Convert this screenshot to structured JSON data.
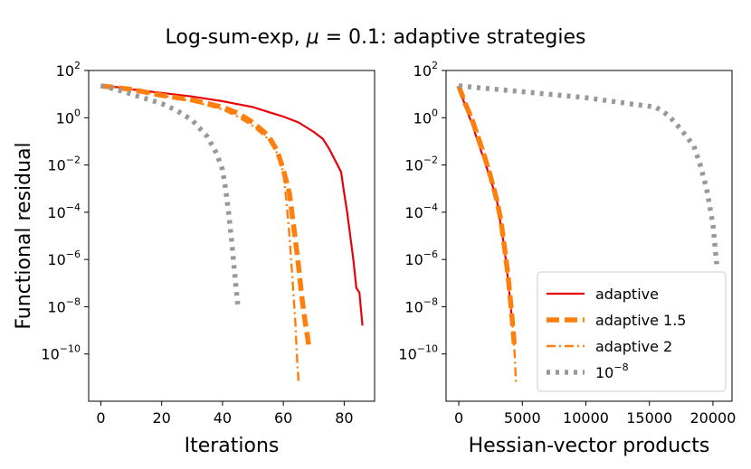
{
  "figure": {
    "title_prefix": "Log-sum-exp, ",
    "title_mu": "μ",
    "title_suffix": " = 0.1: adaptive strategies"
  },
  "legend": [
    {
      "label": "adaptive",
      "color": "#e8000b",
      "style": "solid"
    },
    {
      "label": "adaptive 1.5",
      "color": "#ff7f0e",
      "style": "dashed"
    },
    {
      "label": "adaptive 2",
      "color": "#ff7f0e",
      "style": "dashdot"
    },
    {
      "label_base": "10",
      "label_exp": "−8",
      "color": "#999999",
      "style": "dotted"
    }
  ],
  "chart_data": [
    {
      "type": "line",
      "xlabel": "Iterations",
      "ylabel": "Functional residual",
      "yscale": "log",
      "xlim": [
        -4,
        90
      ],
      "ylim_log10": [
        -12,
        2
      ],
      "xticks": [
        0,
        20,
        40,
        60,
        80
      ],
      "yticks_exp": [
        2,
        0,
        -2,
        -4,
        -6,
        -8,
        -10
      ],
      "series": [
        {
          "name": "adaptive",
          "x": [
            0,
            5,
            10,
            20,
            30,
            40,
            50,
            55,
            60,
            65,
            70,
            73,
            75,
            77,
            79,
            80,
            81,
            82,
            83,
            84,
            85,
            86
          ],
          "log10y": [
            1.35,
            1.3,
            1.2,
            1.05,
            0.9,
            0.7,
            0.45,
            0.25,
            0.05,
            -0.2,
            -0.6,
            -0.9,
            -1.3,
            -1.8,
            -2.3,
            -3.2,
            -4.0,
            -5.0,
            -6.0,
            -7.2,
            -7.4,
            -8.8
          ]
        },
        {
          "name": "adaptive 1.5",
          "x": [
            0,
            10,
            20,
            30,
            40,
            45,
            50,
            55,
            58,
            60,
            62,
            63,
            64,
            65,
            66,
            67,
            68,
            68.5
          ],
          "log10y": [
            1.35,
            1.2,
            0.95,
            0.75,
            0.45,
            0.2,
            -0.2,
            -0.75,
            -1.4,
            -2.2,
            -3.2,
            -4.2,
            -5.2,
            -6.3,
            -7.5,
            -8.5,
            -9.3,
            -9.8
          ]
        },
        {
          "name": "adaptive 2",
          "x": [
            0,
            10,
            20,
            30,
            40,
            45,
            50,
            55,
            58,
            60,
            61,
            62,
            63,
            64,
            64.5,
            65
          ],
          "log10y": [
            1.35,
            1.2,
            0.95,
            0.7,
            0.35,
            0.05,
            -0.35,
            -0.9,
            -1.5,
            -2.3,
            -3.5,
            -5.0,
            -6.8,
            -8.8,
            -10.2,
            -11.2
          ]
        },
        {
          "name": "1e-8",
          "x": [
            0,
            5,
            10,
            15,
            20,
            25,
            30,
            35,
            38,
            40,
            41,
            42,
            43,
            44,
            45
          ],
          "log10y": [
            1.35,
            1.2,
            1.0,
            0.8,
            0.6,
            0.3,
            -0.1,
            -0.8,
            -1.5,
            -2.2,
            -3.0,
            -4.0,
            -5.2,
            -6.6,
            -7.9
          ]
        }
      ]
    },
    {
      "type": "line",
      "xlabel": "Hessian-vector products",
      "yscale": "log",
      "xlim": [
        -1000,
        21500
      ],
      "ylim_log10": [
        -12,
        2
      ],
      "xticks": [
        0,
        5000,
        10000,
        15000,
        20000
      ],
      "yticks_exp": [
        2,
        0,
        -2,
        -4,
        -6,
        -8,
        -10
      ],
      "series": [
        {
          "name": "adaptive",
          "x": [
            0,
            500,
            1000,
            1500,
            2000,
            2500,
            3000,
            3200,
            3500,
            3700,
            3900,
            4100,
            4200
          ],
          "log10y": [
            1.35,
            0.5,
            -0.2,
            -1.0,
            -1.8,
            -2.6,
            -3.5,
            -4.2,
            -5.2,
            -6.0,
            -7.0,
            -8.0,
            -8.8
          ]
        },
        {
          "name": "adaptive 1.5",
          "x": [
            0,
            500,
            1000,
            1500,
            2000,
            2500,
            3000,
            3300,
            3600,
            3900,
            4200,
            4400
          ],
          "log10y": [
            1.35,
            0.6,
            0.0,
            -0.8,
            -1.6,
            -2.5,
            -3.5,
            -4.3,
            -5.5,
            -6.8,
            -8.5,
            -9.8
          ]
        },
        {
          "name": "adaptive 2",
          "x": [
            0,
            500,
            1000,
            1500,
            2000,
            2500,
            3000,
            3300,
            3600,
            3900,
            4200,
            4400,
            4500
          ],
          "log10y": [
            1.35,
            0.7,
            0.1,
            -0.6,
            -1.4,
            -2.3,
            -3.3,
            -4.2,
            -5.4,
            -6.8,
            -8.5,
            -10.0,
            -11.2
          ]
        },
        {
          "name": "1e-8",
          "x": [
            0,
            2000,
            5000,
            8000,
            10000,
            12000,
            14000,
            15500,
            16500,
            17500,
            18500,
            19000,
            19500,
            20000,
            20300
          ],
          "log10y": [
            1.35,
            1.25,
            1.1,
            0.95,
            0.85,
            0.7,
            0.55,
            0.45,
            0.1,
            -0.5,
            -1.2,
            -2.0,
            -3.0,
            -4.5,
            -6.2
          ]
        }
      ]
    }
  ]
}
